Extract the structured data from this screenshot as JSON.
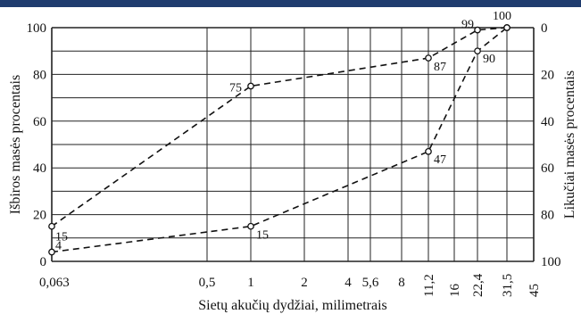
{
  "chart_data": {
    "type": "line",
    "xlabel": "Sietų akučių dydžiai, milimetrais",
    "ylabel_left": "Išbiros masės procentais",
    "ylabel_right": "Likučiai masės procentais",
    "x_ticks": [
      "0,063",
      "0,5",
      "1",
      "2",
      "4",
      "5,6",
      "8",
      "11,2",
      "16",
      "22,4",
      "31,5",
      "45"
    ],
    "y_ticks_left": [
      "0",
      "20",
      "40",
      "60",
      "80",
      "100"
    ],
    "y_ticks_right": [
      "100",
      "80",
      "60",
      "40",
      "20",
      "0"
    ],
    "ylim": [
      0,
      100
    ],
    "series": [
      {
        "x": [
          "0,063",
          "1",
          "11,2",
          "22,4",
          "31,5"
        ],
        "values": [
          15,
          75,
          87,
          99,
          100
        ]
      },
      {
        "x": [
          "0,063",
          "1",
          "11,2",
          "22,4",
          "31,5"
        ],
        "values": [
          4,
          15,
          47,
          90,
          100
        ]
      }
    ],
    "annotations": [
      {
        "series": 0,
        "x": "0,063",
        "text": "15"
      },
      {
        "series": 0,
        "x": "1",
        "text": "75"
      },
      {
        "series": 0,
        "x": "11,2",
        "text": "87"
      },
      {
        "series": 0,
        "x": "22,4",
        "text": "99"
      },
      {
        "series": 0,
        "x": "31,5",
        "text": "100"
      },
      {
        "series": 1,
        "x": "0,063",
        "text": "4"
      },
      {
        "series": 1,
        "x": "1",
        "text": "15"
      },
      {
        "series": 1,
        "x": "11,2",
        "text": "47"
      },
      {
        "series": 1,
        "x": "22,4",
        "text": "90"
      }
    ],
    "grid": true,
    "line_style": "dashed",
    "marker": "open-circle"
  }
}
